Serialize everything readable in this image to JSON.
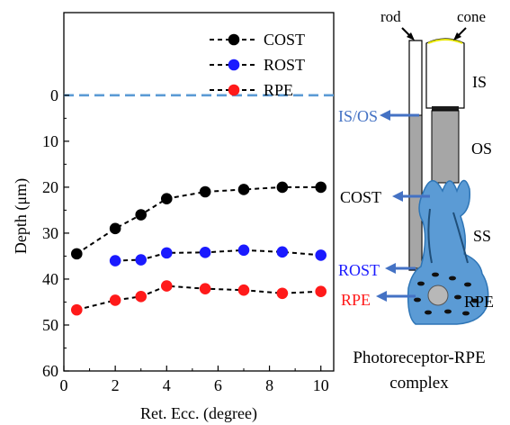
{
  "chart_data": {
    "type": "line",
    "xlabel": "Ret. Ecc. (degree)",
    "ylabel": "Depth (μm)",
    "xlim": [
      0,
      10.5
    ],
    "ylim": [
      60,
      -18
    ],
    "y_inverted": true,
    "x_ticks": [
      0,
      2,
      4,
      6,
      8,
      10
    ],
    "y_ticks": [
      0,
      10,
      20,
      30,
      40,
      50,
      60
    ],
    "grid": false,
    "legend_position": "top-right",
    "reference_line": {
      "y": 0,
      "color": "#5b9bd5",
      "style": "dashed"
    },
    "series": [
      {
        "name": "COST",
        "color": "#000000",
        "x": [
          0.5,
          2,
          3,
          4,
          5.5,
          7,
          8.5,
          10
        ],
        "y": [
          34.5,
          29,
          26,
          22.5,
          21,
          20.5,
          20,
          20
        ]
      },
      {
        "name": "ROST",
        "color": "#1a1aff",
        "x": [
          2,
          3,
          4,
          5.5,
          7,
          8.5,
          10
        ],
        "y": [
          36,
          35.8,
          34.3,
          34.2,
          33.7,
          34.1,
          34.8
        ]
      },
      {
        "name": "RPE",
        "color": "#ff1a1a",
        "x": [
          0.5,
          2,
          3,
          4,
          5.5,
          7,
          8.5,
          10
        ],
        "y": [
          46.7,
          44.6,
          43.8,
          41.5,
          42.1,
          42.4,
          43.1,
          42.7
        ]
      }
    ]
  },
  "diagram": {
    "labels": {
      "rod": "rod",
      "cone": "cone",
      "is": "IS",
      "os": "OS",
      "ss": "SS",
      "rpe_region": "RPE",
      "is_os": "IS/OS",
      "cost": "COST",
      "rost": "ROST",
      "rpe": "RPE",
      "caption_line1": "Photoreceptor-RPE",
      "caption_line2": "complex"
    },
    "colors": {
      "is_os": "#4472c4",
      "cost": "#000000",
      "rost": "#1a1aff",
      "rpe": "#ff1a1a",
      "arrow": "#4472c4",
      "tissue": "#2e75b6"
    }
  }
}
